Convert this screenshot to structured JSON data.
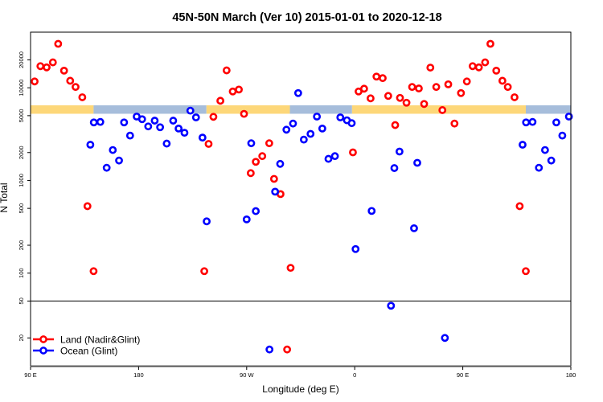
{
  "chart_data": {
    "type": "scatter",
    "title": "45N-50N March (Ver 10)   2015-01-01 to 2020-12-18",
    "xlabel": "Longitude (deg E)",
    "ylabel": "N Total",
    "y_scale": "log",
    "ylim": [
      10,
      40000
    ],
    "xlim_longitude": [
      "90 E",
      "180 (second pass)"
    ],
    "x_ticks": [
      {
        "lon": 90,
        "label": "90 E"
      },
      {
        "lon": 180,
        "label": "180"
      },
      {
        "lon": 270,
        "label": "90 W"
      },
      {
        "lon": 360,
        "label": "0"
      },
      {
        "lon": 450,
        "label": "90 E"
      },
      {
        "lon": 540,
        "label": "180"
      }
    ],
    "y_ticks": [
      20,
      50,
      100,
      200,
      500,
      1000,
      2000,
      5000,
      10000,
      20000
    ],
    "reference_line_y": 50,
    "grid": false,
    "legend_position": "bottom-left",
    "colors": {
      "land": "#FF0000",
      "ocean": "#0000FF",
      "band_land": "#FDD779",
      "band_ocean": "#A6BDDB"
    },
    "surface_band": [
      {
        "surface": "land",
        "from_lon": -2.3,
        "to_lon": 142.5
      },
      {
        "surface": "ocean",
        "from_lon": 142.5,
        "to_lon": -123.5
      },
      {
        "surface": "land",
        "from_lon": -123.5,
        "to_lon": -54
      },
      {
        "surface": "ocean",
        "from_lon": -54,
        "to_lon": -2.3
      }
    ],
    "series": [
      {
        "name": "Land (Nadir&Glint)",
        "color": "#FF0000",
        "points": [
          [
            93.4,
            11700
          ],
          [
            98.2,
            17100
          ],
          [
            103.4,
            16600
          ],
          [
            108.6,
            18800
          ],
          [
            113.0,
            29800
          ],
          [
            117.9,
            15300
          ],
          [
            123.0,
            11900
          ],
          [
            127.5,
            10200
          ],
          [
            133.1,
            7900
          ],
          [
            137.4,
            528
          ],
          [
            142.5,
            105
          ],
          [
            -125.3,
            105
          ],
          [
            -121.7,
            2480
          ],
          [
            -117.7,
            4860
          ],
          [
            -111.9,
            7240
          ],
          [
            -106.7,
            15400
          ],
          [
            -101.6,
            9120
          ],
          [
            -96.5,
            9570
          ],
          [
            -92.2,
            5230
          ],
          [
            -86.6,
            1200
          ],
          [
            -82.4,
            1590
          ],
          [
            -77.0,
            1830
          ],
          [
            -71.2,
            2520
          ],
          [
            -67.2,
            1040
          ],
          [
            -61.8,
            713
          ],
          [
            -53.4,
            114
          ],
          [
            -56.3,
            15
          ],
          [
            -1.5,
            2010
          ],
          [
            3.2,
            9120
          ],
          [
            7.8,
            9770
          ],
          [
            13.2,
            7690
          ],
          [
            18.1,
            13200
          ],
          [
            23.3,
            12700
          ],
          [
            27.9,
            8170
          ],
          [
            33.7,
            3960
          ],
          [
            37.7,
            7780
          ],
          [
            43.1,
            6900
          ],
          [
            47.8,
            10200
          ],
          [
            53.4,
            9830
          ],
          [
            57.8,
            6690
          ],
          [
            63.0,
            16500
          ],
          [
            67.9,
            10200
          ],
          [
            73.0,
            5740
          ],
          [
            77.9,
            10900
          ],
          [
            83.1,
            4110
          ],
          [
            88.5,
            8770
          ]
        ]
      },
      {
        "name": "Ocean (Glint)",
        "color": "#0000FF",
        "points": [
          [
            139.8,
            2430
          ],
          [
            142.7,
            4230
          ],
          [
            148.1,
            4280
          ],
          [
            153.4,
            1370
          ],
          [
            158.5,
            2130
          ],
          [
            163.7,
            1640
          ],
          [
            167.9,
            4230
          ],
          [
            172.9,
            3050
          ],
          [
            178.4,
            4890
          ],
          [
            -177.1,
            4580
          ],
          [
            -172.0,
            3830
          ],
          [
            -166.6,
            4420
          ],
          [
            -162.1,
            3750
          ],
          [
            -156.6,
            2500
          ],
          [
            -151.2,
            4420
          ],
          [
            -146.7,
            3630
          ],
          [
            -141.8,
            3270
          ],
          [
            -136.9,
            5660
          ],
          [
            -132.2,
            4790
          ],
          [
            -126.8,
            2900
          ],
          [
            -123.3,
            362
          ],
          [
            -90.0,
            380
          ],
          [
            -86.2,
            2520
          ],
          [
            -82.4,
            467
          ],
          [
            -71.0,
            15
          ],
          [
            -66.3,
            757
          ],
          [
            -62.1,
            1510
          ],
          [
            -56.9,
            3530
          ],
          [
            -51.4,
            4110
          ],
          [
            -47.1,
            8770
          ],
          [
            -42.4,
            2760
          ],
          [
            -36.8,
            3180
          ],
          [
            -31.5,
            4890
          ],
          [
            -27.0,
            3630
          ],
          [
            -21.9,
            1710
          ],
          [
            -16.5,
            1830
          ],
          [
            -12.0,
            4790
          ],
          [
            -6.5,
            4460
          ],
          [
            -2.5,
            4150
          ],
          [
            0.7,
            182
          ],
          [
            14.1,
            469
          ],
          [
            30.2,
            44.5
          ],
          [
            33.0,
            1360
          ],
          [
            37.3,
            2050
          ],
          [
            49.4,
            305
          ],
          [
            52.1,
            1550
          ],
          [
            75.1,
            20
          ]
        ]
      }
    ]
  }
}
